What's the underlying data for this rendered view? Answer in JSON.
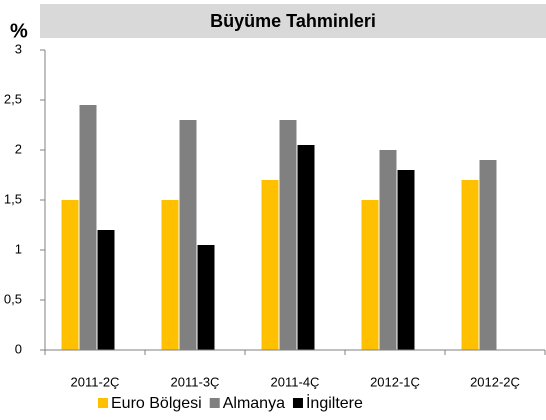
{
  "chart_data": {
    "type": "bar",
    "title": "Büyüme Tahminleri",
    "y_label": "%",
    "categories": [
      "2011-2Ç",
      "2011-3Ç",
      "2011-4Ç",
      "2012-1Ç",
      "2012-2Ç"
    ],
    "series": [
      {
        "name": "Euro Bölgesi",
        "color": "#ffc000",
        "values": [
          1.5,
          1.5,
          1.7,
          1.5,
          1.7
        ]
      },
      {
        "name": "Almanya",
        "color": "#808080",
        "values": [
          2.45,
          2.3,
          2.3,
          2.0,
          1.9
        ]
      },
      {
        "name": "İngiltere",
        "color": "#000000",
        "values": [
          1.2,
          1.05,
          2.05,
          1.8,
          null
        ]
      }
    ],
    "ylim": [
      0,
      3
    ],
    "yticks": [
      0,
      {
        "value": 0.5,
        "label": "0,5"
      },
      1,
      {
        "value": 1.5,
        "label": "1,5"
      },
      2,
      {
        "value": 2.5,
        "label": "2,5"
      },
      3
    ],
    "grid": false,
    "legend": "bottom"
  }
}
